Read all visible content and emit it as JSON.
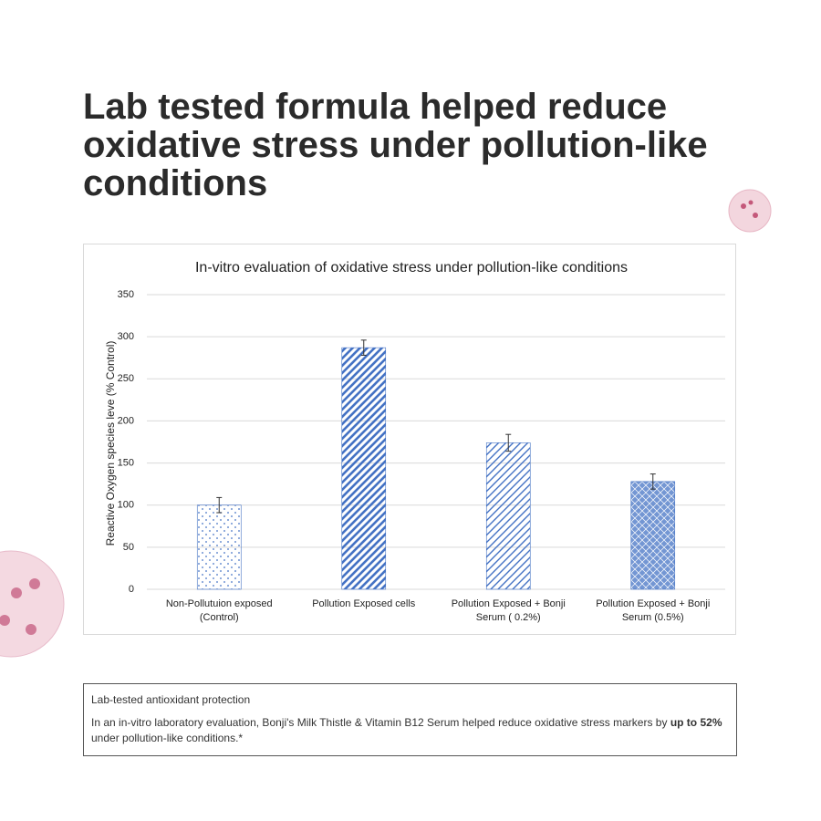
{
  "headline": "Lab tested formula helped reduce oxidative stress under pollution-like conditions",
  "chart_data": {
    "type": "bar",
    "title": "In-vitro evaluation of oxidative stress under pollution-like conditions",
    "y_label": "Reactive Oxygen species leve (% Control)",
    "categories": [
      "Non-Pollutuion exposed (Control)",
      "Pollution Exposed cells",
      "Pollution Exposed + Bonji Serum ( 0.2%)",
      "Pollution Exposed + Bonji Serum (0.5%)"
    ],
    "values": [
      100,
      287,
      174,
      128
    ],
    "errors": [
      9,
      9,
      10,
      9
    ],
    "color": "#4472c4",
    "patterns": [
      "dots",
      "diagonal",
      "diagonal-light",
      "crosshatch"
    ],
    "ylim": [
      0,
      350
    ],
    "yticks": [
      0,
      50,
      100,
      150,
      200,
      250,
      300,
      350
    ],
    "grid": true
  },
  "note": {
    "title": "Lab-tested antioxidant protection",
    "text_before": "In an in-vitro laboratory evaluation, Bonji's Milk Thistle & Vitamin B12 Serum helped reduce oxidative stress markers by ",
    "text_bold": "up to 52%",
    "text_after": " under pollution-like conditions.*"
  }
}
